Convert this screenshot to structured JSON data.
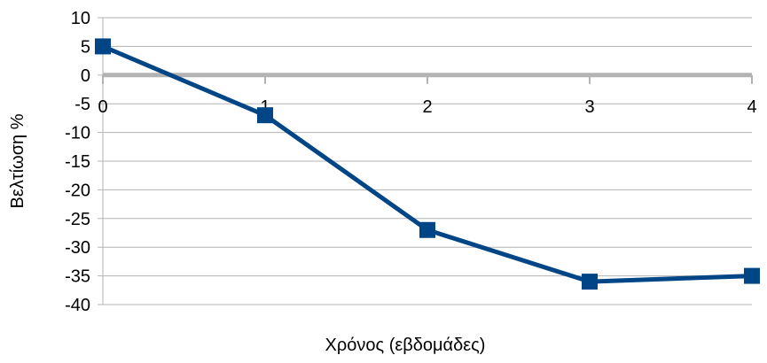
{
  "chart_data": {
    "type": "line",
    "title": "",
    "xlabel": "Χρόνος (εβδομάδες)",
    "ylabel": "Βελτίωση %",
    "x": [
      0,
      1,
      2,
      3,
      4
    ],
    "xlim": [
      0,
      4
    ],
    "ylim": [
      -40,
      10
    ],
    "y_ticks": [
      10,
      5,
      0,
      -5,
      -10,
      -15,
      -20,
      -25,
      -30,
      -35,
      -40
    ],
    "x_ticks": [
      0,
      1,
      2,
      3,
      4
    ],
    "grid": "horizontal",
    "legend": "none",
    "series": [
      {
        "values": [
          5,
          -7,
          -27,
          -36,
          -35
        ],
        "color": "#004586",
        "marker": "square"
      }
    ],
    "colors": {
      "series": "#004586",
      "zero_axis": "#b3b3b3",
      "grid": "#b3b3b3",
      "text": "#000000"
    }
  }
}
